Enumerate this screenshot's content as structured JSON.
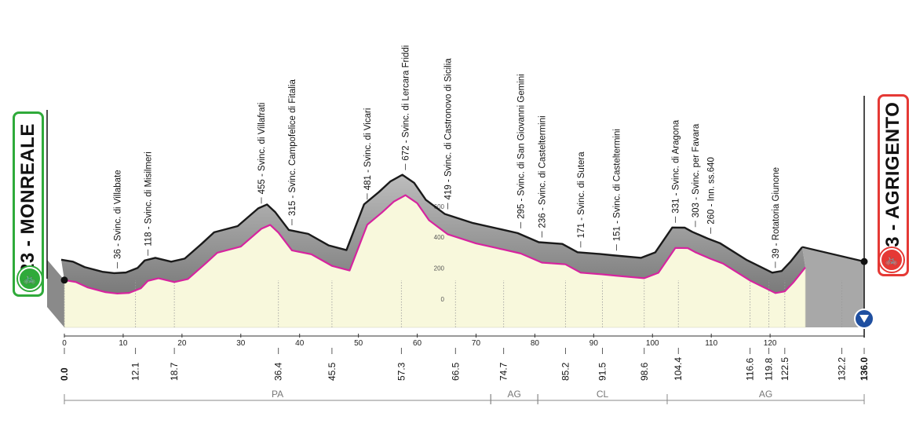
{
  "start": {
    "label": "123 - MONREALE",
    "icon": "bike-icon",
    "color": "#2faa3a"
  },
  "finish": {
    "label": "243 - AGRIGENTO",
    "icon": "bike-icon",
    "color": "#e53935"
  },
  "chart_data": {
    "type": "area",
    "title": "",
    "xlabel": "",
    "ylabel": "",
    "xlim": [
      0,
      136.0
    ],
    "ylim": [
      0,
      700
    ],
    "x_axis_ticks": [
      0,
      10,
      20,
      30,
      40,
      50,
      60,
      70,
      80,
      90,
      100,
      110,
      120
    ],
    "altitude_scale_ticks": [
      0,
      200,
      400,
      600
    ],
    "km_markers": [
      {
        "km": 0.0,
        "label": "0.0",
        "bold": true
      },
      {
        "km": 12.1,
        "label": "12.1"
      },
      {
        "km": 18.7,
        "label": "18.7"
      },
      {
        "km": 36.4,
        "label": "36.4"
      },
      {
        "km": 45.5,
        "label": "45.5"
      },
      {
        "km": 57.3,
        "label": "57.3"
      },
      {
        "km": 66.5,
        "label": "66.5"
      },
      {
        "km": 74.7,
        "label": "74.7"
      },
      {
        "km": 85.2,
        "label": "85.2"
      },
      {
        "km": 91.5,
        "label": "91.5"
      },
      {
        "km": 98.6,
        "label": "98.6"
      },
      {
        "km": 104.4,
        "label": "104.4"
      },
      {
        "km": 116.6,
        "label": "116.6"
      },
      {
        "km": 119.8,
        "label": "119.8"
      },
      {
        "km": 122.5,
        "label": "122.5"
      },
      {
        "km": 132.2,
        "label": "132.2"
      },
      {
        "km": 136.0,
        "label": "136.0",
        "bold": true
      }
    ],
    "waypoints": [
      {
        "km": 9.0,
        "altitude": 36,
        "label": "36 - Svinc. di Villabate"
      },
      {
        "km": 14.2,
        "altitude": 118,
        "label": "118 - Svinc. di Misilmeri"
      },
      {
        "km": 33.5,
        "altitude": 455,
        "label": "455 - Svinc. di Villafrati"
      },
      {
        "km": 38.7,
        "altitude": 315,
        "label": "315 - Svinc. Campofelice di Fitalia"
      },
      {
        "km": 51.5,
        "altitude": 481,
        "label": "481 - Svinc. di Vicari"
      },
      {
        "km": 58.0,
        "altitude": 672,
        "label": "672 - Svinc. di Lercara Friddi"
      },
      {
        "km": 65.2,
        "altitude": 419,
        "label": "419 - Svinc. di Castronovo di Sicilia"
      },
      {
        "km": 77.6,
        "altitude": 295,
        "label": "295 - Svinc. di San Giovanni Gemini"
      },
      {
        "km": 81.2,
        "altitude": 236,
        "label": "236 - Svinc. di Casteltermini"
      },
      {
        "km": 87.8,
        "altitude": 171,
        "label": "171 - Svinc. di Sutera"
      },
      {
        "km": 93.9,
        "altitude": 151,
        "label": "151 - Svinc. di Casteltermini"
      },
      {
        "km": 103.9,
        "altitude": 331,
        "label": "331 - Svinc. di Aragona"
      },
      {
        "km": 107.3,
        "altitude": 303,
        "label": "303 - Svinc. per Favara"
      },
      {
        "km": 109.9,
        "altitude": 260,
        "label": "260 - Inn. ss.640"
      },
      {
        "km": 120.9,
        "altitude": 39,
        "label": "39 - Rotatoria Giunone"
      }
    ],
    "profile": [
      {
        "km": 0,
        "altitude": 123
      },
      {
        "km": 2,
        "altitude": 110
      },
      {
        "km": 4,
        "altitude": 75
      },
      {
        "km": 7,
        "altitude": 45
      },
      {
        "km": 9,
        "altitude": 36
      },
      {
        "km": 11,
        "altitude": 40
      },
      {
        "km": 13,
        "altitude": 70
      },
      {
        "km": 14.2,
        "altitude": 118
      },
      {
        "km": 16,
        "altitude": 135
      },
      {
        "km": 18.7,
        "altitude": 110
      },
      {
        "km": 21,
        "altitude": 130
      },
      {
        "km": 24,
        "altitude": 230
      },
      {
        "km": 26,
        "altitude": 300
      },
      {
        "km": 30,
        "altitude": 340
      },
      {
        "km": 33.5,
        "altitude": 455
      },
      {
        "km": 35,
        "altitude": 480
      },
      {
        "km": 36.4,
        "altitude": 430
      },
      {
        "km": 38.7,
        "altitude": 315
      },
      {
        "km": 42,
        "altitude": 290
      },
      {
        "km": 45.5,
        "altitude": 215
      },
      {
        "km": 48.5,
        "altitude": 185
      },
      {
        "km": 51.5,
        "altitude": 481
      },
      {
        "km": 54,
        "altitude": 560
      },
      {
        "km": 56,
        "altitude": 630
      },
      {
        "km": 58,
        "altitude": 672
      },
      {
        "km": 60,
        "altitude": 620
      },
      {
        "km": 62,
        "altitude": 510
      },
      {
        "km": 65.2,
        "altitude": 419
      },
      {
        "km": 70,
        "altitude": 360
      },
      {
        "km": 74.7,
        "altitude": 320
      },
      {
        "km": 77.6,
        "altitude": 295
      },
      {
        "km": 81.2,
        "altitude": 236
      },
      {
        "km": 85.2,
        "altitude": 225
      },
      {
        "km": 87.8,
        "altitude": 171
      },
      {
        "km": 91.5,
        "altitude": 160
      },
      {
        "km": 93.9,
        "altitude": 151
      },
      {
        "km": 98.6,
        "altitude": 135
      },
      {
        "km": 101,
        "altitude": 170
      },
      {
        "km": 103.9,
        "altitude": 331
      },
      {
        "km": 106,
        "altitude": 330
      },
      {
        "km": 107.3,
        "altitude": 303
      },
      {
        "km": 109.9,
        "altitude": 260
      },
      {
        "km": 112,
        "altitude": 230
      },
      {
        "km": 116.6,
        "altitude": 120
      },
      {
        "km": 119.8,
        "altitude": 60
      },
      {
        "km": 120.9,
        "altitude": 39
      },
      {
        "km": 122.5,
        "altitude": 50
      },
      {
        "km": 124,
        "altitude": 110
      },
      {
        "km": 126,
        "altitude": 205
      }
    ],
    "regions": [
      {
        "label": "PA",
        "from_km": 0,
        "to_km": 72.5
      },
      {
        "label": "AG",
        "from_km": 72.5,
        "to_km": 80.5
      },
      {
        "label": "CL",
        "from_km": 80.5,
        "to_km": 102.5
      },
      {
        "label": "AG",
        "from_km": 102.5,
        "to_km": 136.0
      }
    ],
    "colors": {
      "profile_fill": "#f8f8dc",
      "route_line": "#d6249f",
      "ridge": "#9a9a9a",
      "outline": "#1a1a1a"
    }
  }
}
